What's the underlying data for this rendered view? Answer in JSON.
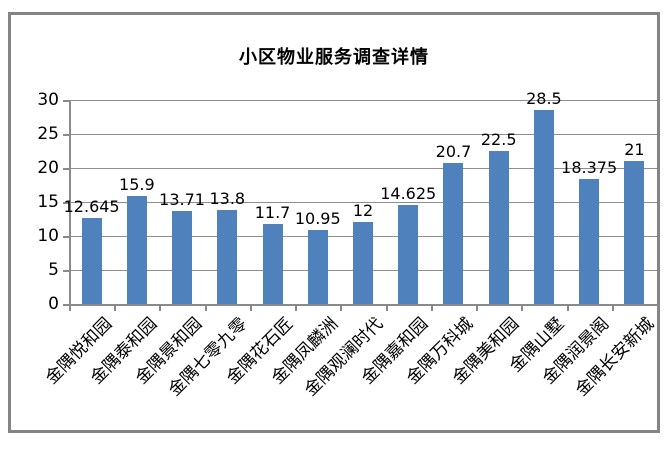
{
  "chart_data": {
    "type": "bar",
    "title": "小区物业服务调查详情",
    "categories": [
      "金隅悦和园",
      "金隅泰和园",
      "金隅景和园",
      "金隅七零九零",
      "金隅花石匠",
      "金隅凤麟洲",
      "金隅观澜时代",
      "金隅嘉和园",
      "金隅万科城",
      "金隅美和园",
      "金隅山墅",
      "金隅润景阁",
      "金隅长安新城"
    ],
    "values": [
      12.645,
      15.9,
      13.71,
      13.8,
      11.7,
      10.95,
      12,
      14.625,
      20.7,
      22.5,
      28.5,
      18.375,
      21
    ],
    "data_labels": [
      "12.645",
      "15.9",
      "13.71",
      "13.8",
      "11.7",
      "10.95",
      "12",
      "14.625",
      "20.7",
      "22.5",
      "28.5",
      "18.375",
      "21"
    ],
    "xlabel": "",
    "ylabel": "",
    "ylim": [
      0,
      30
    ],
    "yticks": [
      0,
      5,
      10,
      15,
      20,
      25,
      30
    ],
    "grid": "horizontal",
    "legend": "none",
    "x_label_rotation_deg": 45,
    "colors": {
      "bar_fill": "#4f81bd",
      "gridline": "#8e8e8e",
      "axis": "#8a8a8a",
      "text": "#000000",
      "frame_border": "#848484",
      "background": "#ffffff"
    }
  }
}
